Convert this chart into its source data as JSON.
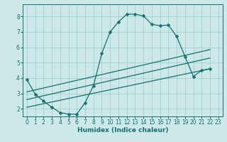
{
  "title": "",
  "xlabel": "Humidex (Indice chaleur)",
  "bg_color": "#cce8e8",
  "grid_color": "#99cccc",
  "line_color": "#1a6e6e",
  "xlim": [
    -0.5,
    23.5
  ],
  "ylim": [
    1.5,
    8.8
  ],
  "xticks": [
    0,
    1,
    2,
    3,
    4,
    5,
    6,
    7,
    8,
    9,
    10,
    11,
    12,
    13,
    14,
    15,
    16,
    17,
    18,
    19,
    20,
    21,
    22,
    23
  ],
  "yticks": [
    2,
    3,
    4,
    5,
    6,
    7,
    8
  ],
  "line1_x": [
    0,
    1,
    2,
    3,
    4,
    5,
    6,
    7,
    8,
    9,
    10,
    11,
    12,
    13,
    14,
    15,
    16,
    17,
    18,
    19,
    20,
    21,
    22
  ],
  "line1_y": [
    3.9,
    2.95,
    2.5,
    2.1,
    1.75,
    1.65,
    1.65,
    2.4,
    3.5,
    5.6,
    7.0,
    7.65,
    8.15,
    8.15,
    8.05,
    7.5,
    7.4,
    7.45,
    6.7,
    5.4,
    4.1,
    4.5,
    4.6
  ],
  "line2_x": [
    0,
    22
  ],
  "line2_y": [
    2.6,
    5.3
  ],
  "line3_x": [
    0,
    22
  ],
  "line3_y": [
    2.1,
    4.6
  ],
  "line4_x": [
    0,
    22
  ],
  "line4_y": [
    3.1,
    5.85
  ],
  "marker_style": "D",
  "marker_size": 2.5,
  "line_width": 0.9,
  "tick_fontsize": 5.5,
  "xlabel_fontsize": 6.5
}
